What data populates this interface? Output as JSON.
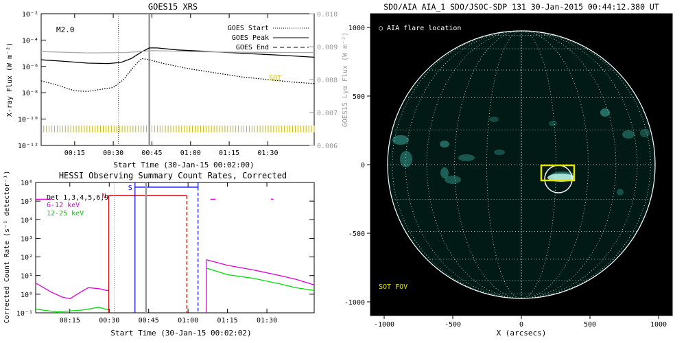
{
  "chart_data": [
    {
      "type": "line",
      "title": "GOES15 XRS",
      "xlabel": "Start Time (30-Jan-15 00:02:00)",
      "ylabel": "X-ray Flux (W m⁻²)",
      "ylabel_right": "GOES15 Lyα Flux (W m⁻²)",
      "xlim_minutes": [
        2,
        108
      ],
      "ylim_log10": [
        -12,
        -2
      ],
      "ylim_right": [
        0.006,
        0.01
      ],
      "xticks": [
        "00:15",
        "00:30",
        "00:45",
        "01:00",
        "01:15",
        "01:30"
      ],
      "xtick_minutes": [
        15,
        30,
        45,
        60,
        75,
        90
      ],
      "yticks": [
        "10⁻¹²",
        "10⁻¹⁰",
        "10⁻⁸",
        "10⁻⁶",
        "10⁻⁴",
        "10⁻²"
      ],
      "ytick_log10": [
        -12,
        -10,
        -8,
        -6,
        -4,
        -2
      ],
      "yticks_right": [
        "0.006",
        "0.007",
        "0.008",
        "0.009",
        "0.010"
      ],
      "ytick_right_values": [
        0.006,
        0.007,
        0.008,
        0.009,
        0.01
      ],
      "annotation": "M2.0",
      "sot_label": "SOT",
      "legend": [
        {
          "name": "GOES Start",
          "style": "dotted"
        },
        {
          "name": "GOES Peak",
          "style": "solid"
        },
        {
          "name": "GOES End",
          "style": "dashed"
        }
      ],
      "markers_minutes": {
        "start": 32,
        "peak": 44
      },
      "series": [
        {
          "name": "XRS long",
          "color": "#000000",
          "x": [
            2,
            10,
            20,
            28,
            33,
            37,
            41,
            44,
            47,
            55,
            65,
            75,
            85,
            95,
            108
          ],
          "y_log10": [
            -5.5,
            -5.6,
            -5.75,
            -5.78,
            -5.7,
            -5.4,
            -4.9,
            -4.6,
            -4.6,
            -4.75,
            -4.85,
            -4.95,
            -5.05,
            -5.15,
            -5.3
          ]
        },
        {
          "name": "XRS short",
          "color": "#000000",
          "style": "dotted",
          "x": [
            2,
            8,
            15,
            20,
            25,
            30,
            34,
            38,
            41,
            44,
            50,
            60,
            70,
            80,
            90,
            100,
            108
          ],
          "y_log10": [
            -7.1,
            -7.4,
            -7.85,
            -7.9,
            -7.75,
            -7.6,
            -7.0,
            -6.0,
            -5.4,
            -5.5,
            -5.8,
            -6.2,
            -6.5,
            -6.8,
            -7.0,
            -7.2,
            -7.3
          ]
        },
        {
          "name": "Lyman alpha",
          "color": "#aaaaaa",
          "x": [
            2,
            20,
            35,
            45,
            60,
            80,
            108
          ],
          "y_right": [
            0.00885,
            0.00881,
            0.00882,
            0.00888,
            0.00885,
            0.00883,
            0.00882
          ]
        }
      ]
    },
    {
      "type": "line",
      "title": "HESSI Observing Summary Count Rates, Corrected",
      "xlabel": "Start Time (30-Jan-15 00:02:02)",
      "ylabel": "Corrected Count Rate (s⁻¹ detector⁻¹)",
      "xlim_minutes": [
        2,
        108
      ],
      "ylim_log10": [
        -1,
        6
      ],
      "xticks": [
        "00:15",
        "00:30",
        "00:45",
        "01:00",
        "01:15",
        "01:30"
      ],
      "xtick_minutes": [
        15,
        30,
        45,
        60,
        75,
        90
      ],
      "yticks": [
        "10⁻¹",
        "10⁰",
        "10¹",
        "10²",
        "10³",
        "10⁴",
        "10⁵",
        "10⁶"
      ],
      "ytick_log10": [
        -1,
        0,
        1,
        2,
        3,
        4,
        5,
        6
      ],
      "legend_title": "Det 1,3,4,5,6,9",
      "legend": [
        {
          "name": "6-12 keV",
          "color": "#dd00dd"
        },
        {
          "name": "12-25 keV",
          "color": "#00dd00"
        }
      ],
      "flags": {
        "N_label": "N",
        "S_label": "S"
      },
      "series": [
        {
          "name": "6-12 keV",
          "color": "#dd00dd",
          "x": [
            2,
            8,
            12,
            15,
            19,
            22,
            26,
            29,
            29.8,
            67,
            67,
            75,
            85,
            95,
            101,
            108
          ],
          "y_log10": [
            0.6,
            0.1,
            -0.15,
            -0.25,
            0.1,
            0.35,
            0.3,
            0.2,
            0.2,
            null,
            1.85,
            1.55,
            1.3,
            1.0,
            0.8,
            0.5
          ]
        },
        {
          "name": "12-25 keV",
          "color": "#00dd00",
          "x": [
            2,
            10,
            20,
            26,
            29.8,
            67,
            67,
            75,
            85,
            95,
            101,
            108
          ],
          "y_log10": [
            -0.8,
            -0.95,
            -0.85,
            -0.7,
            -0.85,
            null,
            1.4,
            1.05,
            0.85,
            0.55,
            0.35,
            0.2
          ]
        }
      ]
    }
  ],
  "image_panel": {
    "title": "SDO/AIA AIA_1 SDO/JSOC-SDP 131 30-Jan-2015 00:44:12.380 UT",
    "legend_flare": "○ AIA flare location",
    "legend_sot": "SOT FOV",
    "xlabel": "X (arcsecs)",
    "xlim": [
      -1100,
      1100
    ],
    "ylim": [
      -1100,
      1100
    ],
    "xticks": [
      "-1000",
      "-500",
      "0",
      "500",
      "1000"
    ],
    "xtick_values": [
      -1000,
      -500,
      0,
      500,
      1000
    ],
    "yticks": [
      "1000",
      "500",
      "0",
      "-500",
      "-1000"
    ],
    "ytick_values": [
      1000,
      500,
      0,
      -500,
      -1000
    ],
    "solar_radius_arcsec": 975,
    "flare_location_arcsec": [
      270,
      -105
    ],
    "sot_fov_arcsec": {
      "center": [
        265,
        -60
      ],
      "width": 240,
      "height": 110
    },
    "colors": {
      "disk": "#021a16",
      "background": "#000000",
      "limb": "#ffffff",
      "sot": "#e5e500"
    }
  }
}
